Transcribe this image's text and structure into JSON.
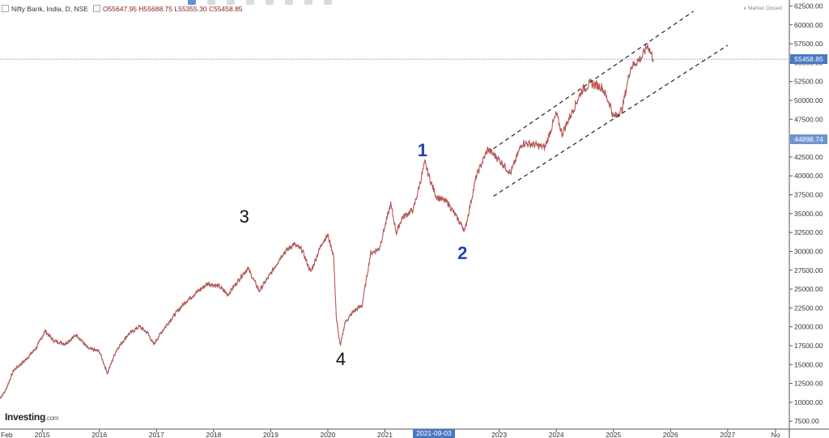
{
  "header": {
    "symbol": "Nifty Bank, India, D, NSE",
    "open": "O55647.95",
    "high": "H55688.75",
    "low": "L55355.30",
    "close": "C55458.85"
  },
  "market_status": "Market Closed",
  "brand": {
    "name": "Investing",
    "domain": ".com"
  },
  "crosshair_date": "2021-09-03",
  "price_tags": [
    {
      "label": "55458.85",
      "value": 55458.85,
      "color": "#4a78c2"
    },
    {
      "label": "44898.74",
      "value": 44898.74,
      "color": "#6f93cf"
    }
  ],
  "wave_labels": [
    {
      "text": "1",
      "date": 2021.67,
      "price": 43400,
      "color": "#1f43b8",
      "style": "blue"
    },
    {
      "text": "2",
      "date": 2022.37,
      "price": 29700,
      "color": "#1f43b8",
      "style": "blue"
    },
    {
      "text": "3",
      "date": 2018.55,
      "price": 34600,
      "color": "#111111",
      "style": "black"
    },
    {
      "text": "4",
      "date": 2020.24,
      "price": 15700,
      "color": "#111111",
      "style": "black"
    }
  ],
  "chart_data": {
    "type": "line",
    "title": "",
    "xlabel": "",
    "ylabel": "",
    "xlim": [
      2014.26,
      2028.08
    ],
    "ylim": [
      6450,
      63300
    ],
    "grid": false,
    "x_ticks": [
      "Feb",
      "2015",
      "2016",
      "2017",
      "2018",
      "2019",
      "2020",
      "2021",
      "2022",
      "2023",
      "2024",
      "2025",
      "2026",
      "2027",
      "No"
    ],
    "x_tick_dates": [
      2014.1,
      2015.0,
      2016.0,
      2017.0,
      2018.0,
      2019.0,
      2020.0,
      2021.0,
      2022.0,
      2023.0,
      2024.0,
      2025.0,
      2026.0,
      2027.0,
      2027.84
    ],
    "y_ticks": [
      "62500.00",
      "60000.00",
      "57500.00",
      "55000.00",
      "52500.00",
      "50000.00",
      "47500.00",
      "45000.00",
      "42500.00",
      "40000.00",
      "37500.00",
      "35000.00",
      "32500.00",
      "30000.00",
      "27500.00",
      "25000.00",
      "22500.00",
      "20000.00",
      "17500.00",
      "15000.00",
      "12500.00",
      "10000.00",
      "7500.00"
    ],
    "y_tick_values": [
      62500,
      60000,
      57500,
      55000,
      52500,
      50000,
      47500,
      45000,
      42500,
      40000,
      37500,
      35000,
      32500,
      30000,
      27500,
      25000,
      22500,
      20000,
      17500,
      15000,
      12500,
      10000,
      7500
    ],
    "series": [
      {
        "color": "#c0504d",
        "x": [
          2014.26,
          2014.35,
          2014.5,
          2014.7,
          2014.9,
          2015.05,
          2015.2,
          2015.4,
          2015.6,
          2015.8,
          2016.0,
          2016.14,
          2016.3,
          2016.5,
          2016.7,
          2016.85,
          2016.95,
          2017.1,
          2017.3,
          2017.5,
          2017.7,
          2017.9,
          2018.1,
          2018.25,
          2018.5,
          2018.6,
          2018.8,
          2019.0,
          2019.2,
          2019.4,
          2019.55,
          2019.7,
          2019.9,
          2020.0,
          2020.1,
          2020.15,
          2020.22,
          2020.3,
          2020.45,
          2020.6,
          2020.75,
          2020.9,
          2021.1,
          2021.2,
          2021.3,
          2021.5,
          2021.7,
          2021.8,
          2021.9,
          2022.1,
          2022.25,
          2022.4,
          2022.6,
          2022.8,
          2023.0,
          2023.2,
          2023.4,
          2023.6,
          2023.8,
          2024.0,
          2024.1,
          2024.3,
          2024.45,
          2024.6,
          2024.8,
          2024.95,
          2025.0,
          2025.15,
          2025.3,
          2025.5,
          2025.6,
          2025.7
        ],
        "y": [
          10600,
          11500,
          14300,
          15600,
          17300,
          19500,
          18200,
          17800,
          19000,
          17200,
          16800,
          13900,
          17000,
          19000,
          20100,
          19200,
          17700,
          19500,
          21500,
          23300,
          24600,
          25800,
          25400,
          24300,
          26900,
          27800,
          24800,
          27100,
          29600,
          31000,
          30200,
          27300,
          31200,
          32200,
          29500,
          21000,
          17500,
          20600,
          22100,
          22900,
          29800,
          30400,
          36300,
          32500,
          34500,
          35600,
          41800,
          39300,
          37300,
          36500,
          34600,
          32800,
          40000,
          43600,
          42200,
          40400,
          44400,
          44200,
          43800,
          48300,
          45600,
          48900,
          51400,
          52300,
          51800,
          49300,
          47800,
          48800,
          54400,
          55800,
          57400,
          55458.85
        ]
      }
    ],
    "trendlines": [
      {
        "x": [
          2022.9,
          2026.4
        ],
        "y": [
          43600,
          61800
        ],
        "style": "dashed",
        "color": "#222222"
      },
      {
        "x": [
          2022.9,
          2027.0
        ],
        "y": [
          37300,
          57300
        ],
        "style": "dashed",
        "color": "#222222"
      }
    ],
    "reference_lines": [
      {
        "value": 55458.85,
        "style": "dotted",
        "color": "#4a78c2"
      }
    ]
  }
}
